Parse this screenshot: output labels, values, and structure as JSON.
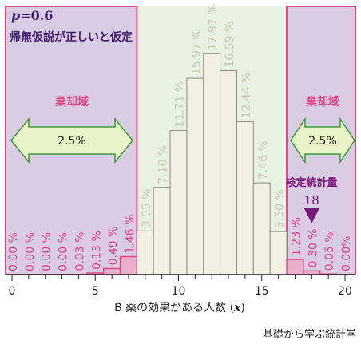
{
  "chart_data": {
    "type": "bar",
    "x": [
      0,
      1,
      2,
      3,
      4,
      5,
      6,
      7,
      8,
      9,
      10,
      11,
      12,
      13,
      14,
      15,
      16,
      17,
      18,
      19,
      20
    ],
    "values": [
      0.0,
      0.0,
      0.0,
      0.0,
      0.03,
      0.13,
      0.49,
      1.46,
      3.55,
      7.1,
      11.71,
      15.97,
      17.97,
      16.59,
      12.44,
      7.46,
      3.5,
      1.23,
      0.3,
      0.05,
      0.0
    ],
    "value_labels": [
      "0.00 %",
      "0.00 %",
      "0.00 %",
      "0.00 %",
      "0.03 %",
      "0.13 %",
      "0.49 %",
      "1.46 %",
      "3.55 %",
      "7.10 %",
      "11.71 %",
      "15.97 %",
      "17.97 %",
      "16.59 %",
      "12.44 %",
      "7.46 %",
      "3.50 %",
      "1.23 %",
      "0.30 %",
      "0.05 %",
      "0.00%"
    ],
    "rejection_bars": [
      0,
      1,
      2,
      3,
      4,
      5,
      6,
      7,
      17,
      18,
      19,
      20
    ],
    "xticks": [
      0,
      5,
      10,
      15,
      20
    ],
    "xlabel_prefix": "B 薬の効果がある人数 (",
    "xlabel_var": "x",
    "xlabel_suffix": ")",
    "xlim": [
      -0.5,
      20.5
    ],
    "ylim": [
      0,
      20
    ],
    "p_label_var": "p",
    "p_label_rest": "=0.6",
    "hypothesis_text": "帰無仮説が正しいと仮定",
    "rejection_left": {
      "title": "棄却域",
      "percent": "2.5%"
    },
    "rejection_right": {
      "title": "棄却域",
      "percent": "2.5%"
    },
    "test_statistic_label": "検定統計量",
    "test_statistic_value": "18",
    "colors": {
      "rejection_region_fill": "#d9cce3",
      "rejection_border": "#e0488a",
      "acceptance_fill": "#e8f2e0",
      "bar_fill_center": "#f1f0e2",
      "bar_fill_tail": "#eab0cb",
      "label_text_center": "#c9c8b5",
      "label_text_tail": "#e0488a",
      "arrow_fill": "#e9f4c8",
      "arrow_stroke": "#3a9a3a",
      "marker": "#7a177a"
    }
  },
  "watermark": "基礎から学ぶ統計学"
}
